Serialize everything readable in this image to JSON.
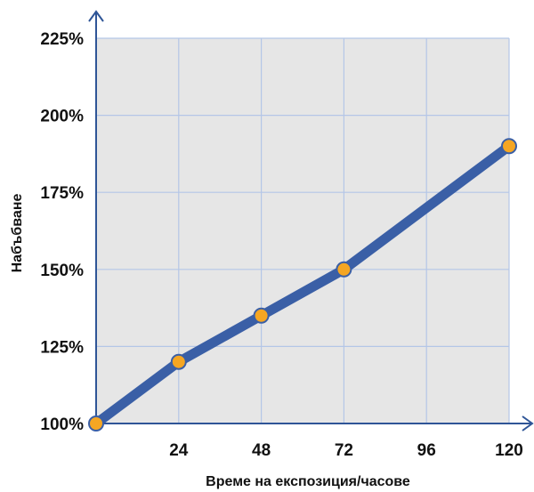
{
  "chart_data": {
    "type": "line",
    "x": [
      0,
      24,
      48,
      72,
      120
    ],
    "series": [
      {
        "values": [
          100,
          120,
          135,
          150,
          190
        ]
      }
    ],
    "x_tick_labels": [
      "24",
      "48",
      "72",
      "96",
      "120"
    ],
    "x_ticks": [
      24,
      48,
      72,
      96,
      120
    ],
    "y_tick_labels": [
      "100%",
      "125%",
      "150%",
      "175%",
      "200%",
      "225%"
    ],
    "y_ticks": [
      100,
      125,
      150,
      175,
      200,
      225
    ],
    "xlabel": "Време на експозиция/часове",
    "ylabel": "Набъбване",
    "xlim": [
      0,
      120
    ],
    "ylim": [
      100,
      225
    ],
    "grid": true,
    "colors": {
      "plot_background": "#e6e6e6",
      "grid": "#b4c6e7",
      "line": "#3a5fa6",
      "marker_fill": "#f5a623",
      "marker_stroke": "#3a5fa6",
      "axis": "#2f5597"
    }
  }
}
